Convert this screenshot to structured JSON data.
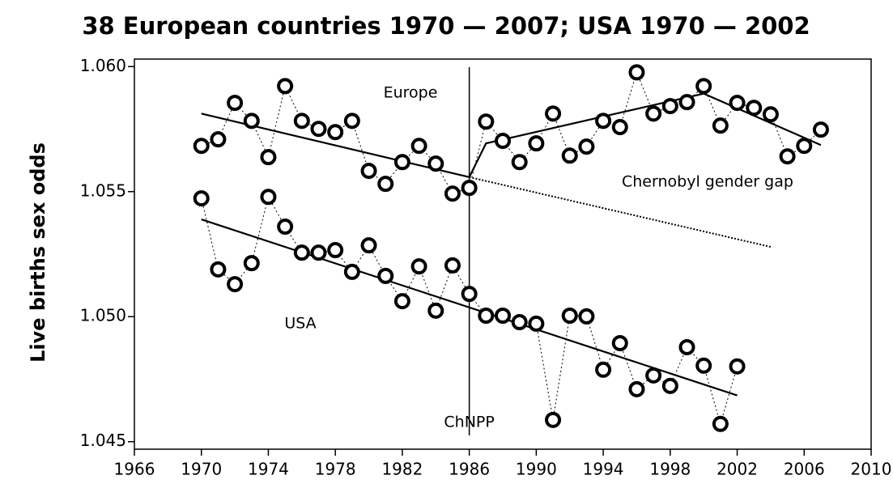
{
  "chart_data": {
    "type": "line",
    "title": "38 European countries 1970 — 2007; USA 1970 — 2002",
    "y_label": "Live births sex odds",
    "xlim": [
      1966,
      2010
    ],
    "xticks": [
      1966,
      1970,
      1974,
      1978,
      1982,
      1986,
      1990,
      1994,
      1998,
      2002,
      2006,
      2010
    ],
    "ylim": [
      1.0447,
      1.0603
    ],
    "yticks": [
      1.045,
      {
        "value": 1.05,
        "label": "1.050"
      },
      1.055,
      {
        "value": 1.06,
        "label": "1.060"
      }
    ],
    "series": [
      {
        "name": "Europe",
        "color": "#000000",
        "x": [
          1970,
          1971,
          1972,
          1973,
          1974,
          1975,
          1976,
          1977,
          1978,
          1979,
          1980,
          1981,
          1982,
          1983,
          1984,
          1985,
          1986,
          1987,
          1988,
          1989,
          1990,
          1991,
          1992,
          1993,
          1994,
          1995,
          1996,
          1997,
          1998,
          1999,
          2000,
          2001,
          2002,
          2003,
          2004,
          2005,
          2006,
          2007
        ],
        "values": [
          1.05683,
          1.05709,
          1.05855,
          1.05783,
          1.05638,
          1.05922,
          1.05783,
          1.05751,
          1.05738,
          1.05783,
          1.05583,
          1.05531,
          1.05618,
          1.05683,
          1.05612,
          1.05492,
          1.05515,
          1.0578,
          1.05703,
          1.05618,
          1.05693,
          1.05812,
          1.05644,
          1.0568,
          1.05783,
          1.05758,
          1.05977,
          1.05812,
          1.05842,
          1.05858,
          1.05922,
          1.05764,
          1.05855,
          1.05835,
          1.05809,
          1.05641,
          1.05683,
          1.05748
        ]
      },
      {
        "name": "USA",
        "color": "#000000",
        "x": [
          1970,
          1971,
          1972,
          1973,
          1974,
          1975,
          1976,
          1977,
          1978,
          1979,
          1980,
          1981,
          1982,
          1983,
          1984,
          1985,
          1986,
          1987,
          1988,
          1989,
          1990,
          1991,
          1992,
          1993,
          1994,
          1995,
          1996,
          1997,
          1998,
          1999,
          2000,
          2001,
          2002
        ],
        "values": [
          1.05473,
          1.05189,
          1.0513,
          1.05214,
          1.05479,
          1.0536,
          1.05256,
          1.05256,
          1.05266,
          1.05179,
          1.05285,
          1.05163,
          1.05062,
          1.05201,
          1.05024,
          1.05205,
          1.05091,
          1.05004,
          1.05004,
          1.04978,
          1.04972,
          1.04587,
          1.05004,
          1.05001,
          1.04788,
          1.04894,
          1.0471,
          1.04765,
          1.04723,
          1.04878,
          1.04804,
          1.04571,
          1.04801
        ]
      }
    ],
    "trend_lines": [
      {
        "x": [
          1970,
          1986
        ],
        "values": [
          1.05812,
          1.05558
        ],
        "style": "solid"
      },
      {
        "x": [
          1986,
          2004
        ],
        "values": [
          1.05558,
          1.05279
        ],
        "style": "dotted"
      },
      {
        "x": [
          1986,
          1987,
          2000,
          2007
        ],
        "values": [
          1.05558,
          1.05693,
          1.05892,
          1.05686
        ],
        "style": "solid"
      },
      {
        "x": [
          1970,
          2002
        ],
        "values": [
          1.05389,
          1.04685
        ],
        "style": "solid"
      }
    ],
    "event_line": {
      "x": 1986,
      "label": "ChNPP"
    },
    "annotations": [
      "Europe",
      "Chernobyl gender gap",
      "USA"
    ]
  }
}
